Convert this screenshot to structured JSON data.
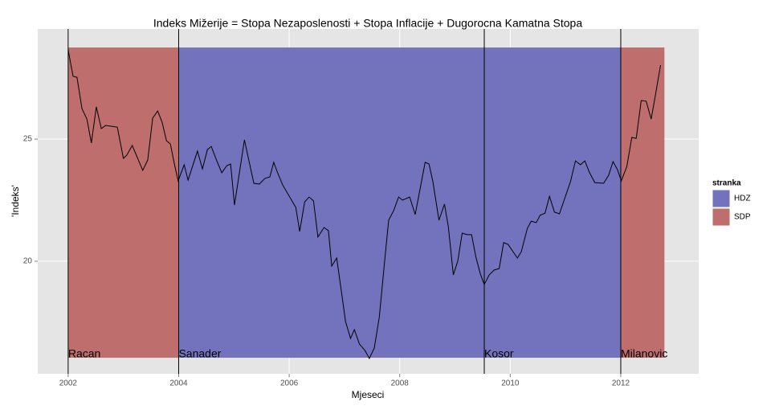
{
  "chart_data": {
    "type": "line",
    "title": "Indeks Mižerije = Stopa Nezaposlenosti + Stopa Inflacije + Dugorocna Kamatna Stopa",
    "x_label": "Mjeseci",
    "y_label": "'Indeks'",
    "color": "#000000",
    "x": [
      2002.0,
      2002.09,
      2002.16,
      2002.25,
      2002.34,
      2002.42,
      2002.51,
      2002.6,
      2002.68,
      2002.89,
      2003.0,
      2003.06,
      2003.16,
      2003.35,
      2003.44,
      2003.53,
      2003.62,
      2003.7,
      2003.78,
      2003.85,
      2003.92,
      2003.99,
      2004.1,
      2004.17,
      2004.34,
      2004.43,
      2004.52,
      2004.59,
      2004.69,
      2004.78,
      2004.87,
      2004.94,
      2005.01,
      2005.19,
      2005.36,
      2005.46,
      2005.56,
      2005.65,
      2005.72,
      2005.78,
      2005.88,
      2006.12,
      2006.19,
      2006.28,
      2006.36,
      2006.44,
      2006.52,
      2006.63,
      2006.71,
      2006.77,
      2006.86,
      2007.02,
      2007.11,
      2007.18,
      2007.27,
      2007.37,
      2007.45,
      2007.54,
      2007.63,
      2007.72,
      2007.8,
      2007.89,
      2007.98,
      2008.05,
      2008.18,
      2008.28,
      2008.46,
      2008.53,
      2008.6,
      2008.71,
      2008.81,
      2008.88,
      2008.97,
      2009.05,
      2009.13,
      2009.22,
      2009.3,
      2009.38,
      2009.46,
      2009.53,
      2009.62,
      2009.71,
      2009.8,
      2009.88,
      2009.96,
      2010.13,
      2010.2,
      2010.31,
      2010.38,
      2010.47,
      2010.54,
      2010.63,
      2010.71,
      2010.8,
      2010.89,
      2011.09,
      2011.18,
      2011.27,
      2011.35,
      2011.43,
      2011.53,
      2011.69,
      2011.78,
      2011.86,
      2011.94,
      2012.01,
      2012.11,
      2012.2,
      2012.28,
      2012.37,
      2012.46,
      2012.55,
      2012.63,
      2012.72
    ],
    "values": [
      28.65,
      27.57,
      27.53,
      26.25,
      25.82,
      24.84,
      26.32,
      25.43,
      25.56,
      25.49,
      24.21,
      24.34,
      24.74,
      23.72,
      24.14,
      25.86,
      26.15,
      25.69,
      24.93,
      24.8,
      24.01,
      23.29,
      23.95,
      23.32,
      24.51,
      23.78,
      24.57,
      24.7,
      24.11,
      23.62,
      23.91,
      23.98,
      22.3,
      24.97,
      23.19,
      23.16,
      23.39,
      23.45,
      24.05,
      23.68,
      23.13,
      22.2,
      21.22,
      22.43,
      22.63,
      22.47,
      20.99,
      21.38,
      21.25,
      19.8,
      20.13,
      17.53,
      16.84,
      17.2,
      16.61,
      16.35,
      16.02,
      16.45,
      17.7,
      19.84,
      21.68,
      22.07,
      22.63,
      22.5,
      22.63,
      21.91,
      24.05,
      23.98,
      23.26,
      21.68,
      22.34,
      21.41,
      19.44,
      20.0,
      21.15,
      21.09,
      21.09,
      20.16,
      19.47,
      19.05,
      19.44,
      19.64,
      19.7,
      20.76,
      20.69,
      20.13,
      20.39,
      21.35,
      21.64,
      21.58,
      21.88,
      21.97,
      22.66,
      22.01,
      21.94,
      23.26,
      24.11,
      23.95,
      24.11,
      23.65,
      23.22,
      23.19,
      23.52,
      24.08,
      23.75,
      23.29,
      23.88,
      25.07,
      25.03,
      26.58,
      26.55,
      25.82,
      26.84,
      28.03
    ],
    "xlim": [
      2001.45,
      2013.41
    ],
    "xticks": [
      2002,
      2004,
      2006,
      2008,
      2010,
      2012
    ],
    "ylim": [
      15.39,
      29.51
    ],
    "yticks": [
      20,
      25
    ],
    "grid": true,
    "band_range": [
      16.05,
      28.75
    ],
    "periods": [
      {
        "name": "Racan",
        "party": "SDP",
        "start": 2002.0,
        "end": 2004.0
      },
      {
        "name": "Sanader",
        "party": "HDZ",
        "start": 2004.0,
        "end": 2009.53
      },
      {
        "name": "Kosor",
        "party": "HDZ",
        "start": 2009.53,
        "end": 2012.0
      },
      {
        "name": "Milanovic",
        "party": "SDP",
        "start": 2012.0,
        "end": 2012.79
      }
    ],
    "legend": {
      "title": "stranka",
      "items": [
        {
          "name": "HDZ",
          "color": "#7373bd"
        },
        {
          "name": "SDP",
          "color": "#bd6e6d"
        }
      ]
    }
  }
}
